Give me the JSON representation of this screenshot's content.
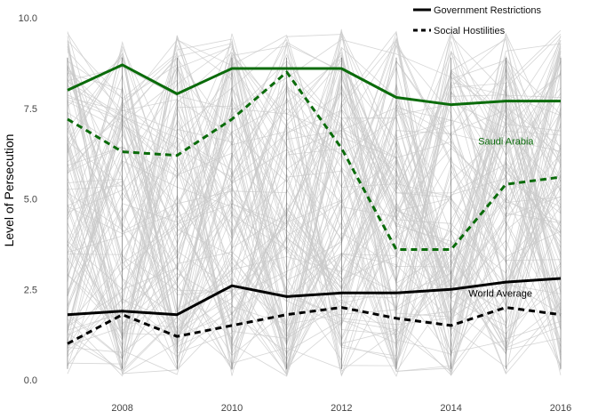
{
  "chart_data": {
    "type": "line",
    "ylabel": "Level of Persecution",
    "xlabel": "",
    "x": [
      2007,
      2008,
      2009,
      2010,
      2011,
      2012,
      2013,
      2014,
      2015,
      2016
    ],
    "xlim": [
      2007,
      2016
    ],
    "ylim": [
      0,
      10
    ],
    "x_ticks": [
      2008,
      2010,
      2012,
      2014,
      2016
    ],
    "y_ticks": [
      "0.0",
      "2.5",
      "5.0",
      "7.5",
      "10.0"
    ],
    "grid": false,
    "legend_position": "top-right",
    "legend": [
      {
        "label": "Government Restrictions",
        "style": "solid"
      },
      {
        "label": "Social Hostilities",
        "style": "dashed"
      }
    ],
    "series": [
      {
        "name": "Saudi Arabia",
        "measure": "Government Restrictions",
        "color": "#0a6b0a",
        "style": "solid",
        "values": [
          8.0,
          8.7,
          7.9,
          8.6,
          8.6,
          8.6,
          7.8,
          7.6,
          7.7,
          7.7
        ]
      },
      {
        "name": "Saudi Arabia",
        "measure": "Social Hostilities",
        "color": "#0a6b0a",
        "style": "dashed",
        "values": [
          7.2,
          6.3,
          6.2,
          7.2,
          8.5,
          6.4,
          3.6,
          3.6,
          5.4,
          5.6
        ]
      },
      {
        "name": "World Average",
        "measure": "Government Restrictions",
        "color": "#000000",
        "style": "solid",
        "values": [
          1.8,
          1.9,
          1.8,
          2.6,
          2.3,
          2.4,
          2.4,
          2.5,
          2.7,
          2.8
        ]
      },
      {
        "name": "World Average",
        "measure": "Social Hostilities",
        "color": "#000000",
        "style": "dashed",
        "values": [
          1.0,
          1.8,
          1.2,
          1.5,
          1.8,
          2.0,
          1.7,
          1.5,
          2.0,
          1.8
        ]
      }
    ],
    "annotations": [
      {
        "text": "Saudi Arabia",
        "color": "#0a6b0a",
        "x": 2015.0,
        "y": 6.5
      },
      {
        "text": "World Average",
        "color": "#000000",
        "x": 2014.9,
        "y": 2.3
      }
    ]
  },
  "colors": {
    "saudi": "#0a6b0a",
    "world": "#000000",
    "background_lines": "#c8c8c8",
    "year_lines": "#333333"
  }
}
